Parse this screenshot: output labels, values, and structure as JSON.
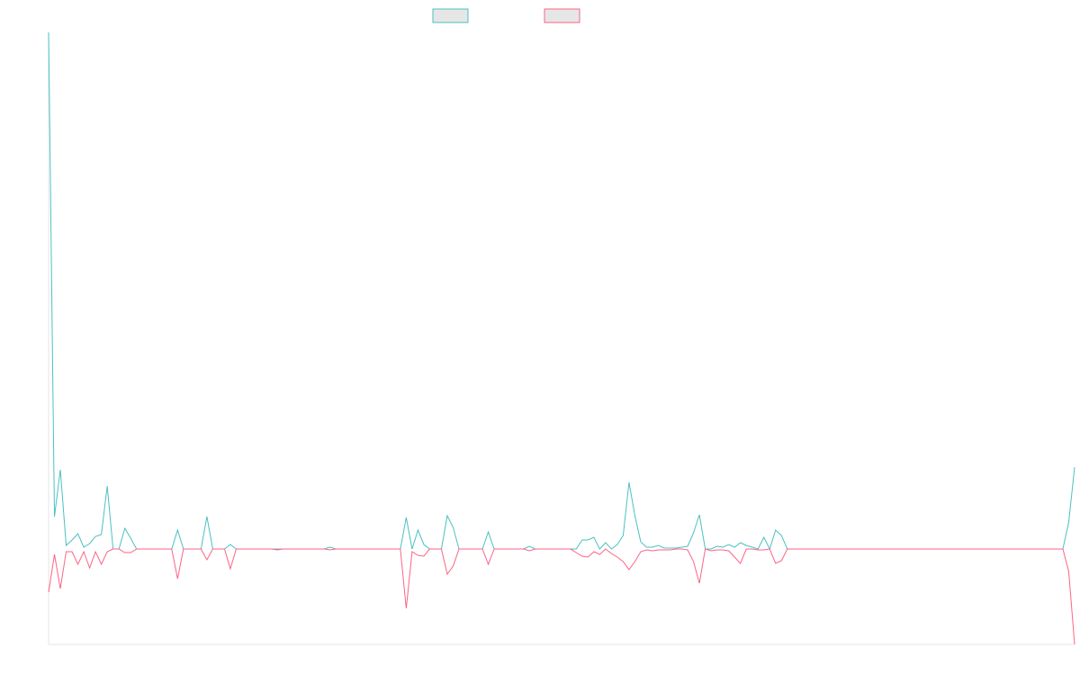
{
  "chart_data": {
    "type": "line",
    "series": [
      {
        "color": "#4bc0c0",
        "values": [
          574,
          36,
          88,
          4,
          10,
          17,
          2,
          6,
          14,
          16,
          70,
          0,
          0,
          23,
          12,
          0,
          0,
          0,
          0,
          0,
          0,
          0,
          21,
          0,
          0,
          0,
          0,
          36,
          0,
          0,
          0,
          5,
          0,
          0,
          0,
          0,
          0,
          0,
          0,
          0,
          0,
          0,
          0,
          0,
          0,
          0,
          0,
          0,
          2,
          0,
          0,
          0,
          0,
          0,
          0,
          0,
          0,
          0,
          0,
          0,
          0,
          35,
          0,
          21,
          5,
          0,
          0,
          0,
          37,
          24,
          0,
          0,
          0,
          0,
          0,
          19,
          0,
          0,
          0,
          0,
          0,
          0,
          3,
          0,
          0,
          0,
          0,
          0,
          0,
          0,
          0,
          10,
          10,
          13,
          0,
          7,
          0,
          5,
          15,
          74,
          37,
          8,
          2,
          2,
          4,
          1,
          1,
          1,
          2,
          3,
          18,
          38,
          0,
          0,
          3,
          2,
          5,
          2,
          7,
          4,
          2,
          0,
          13,
          0,
          21,
          15,
          0,
          0,
          0,
          0,
          0,
          0,
          0,
          0,
          0,
          0,
          0,
          0,
          0,
          0,
          0,
          0,
          0,
          0,
          0,
          0,
          0,
          0,
          0,
          0,
          0,
          0,
          0,
          0,
          0,
          0,
          0,
          0,
          0,
          0,
          0,
          0,
          0,
          0,
          0,
          0,
          0,
          0,
          0,
          0,
          0,
          0,
          0,
          0,
          30,
          91
        ]
      },
      {
        "color": "#ff6384",
        "values": [
          -48,
          -6,
          -44,
          -3,
          -3,
          -17,
          -3,
          -21,
          -3,
          -17,
          -3,
          0,
          0,
          -4,
          -4,
          0,
          0,
          0,
          0,
          0,
          0,
          0,
          -33,
          0,
          0,
          0,
          0,
          -12,
          0,
          0,
          0,
          -22,
          0,
          0,
          0,
          0,
          0,
          0,
          0,
          -1,
          0,
          0,
          0,
          0,
          0,
          0,
          0,
          0,
          -1,
          0,
          0,
          0,
          0,
          0,
          0,
          0,
          0,
          0,
          0,
          0,
          0,
          -66,
          -3,
          -7,
          -8,
          0,
          0,
          0,
          -28,
          -19,
          0,
          0,
          0,
          0,
          0,
          -17,
          0,
          0,
          0,
          0,
          0,
          0,
          -2,
          0,
          0,
          0,
          0,
          0,
          0,
          0,
          -4,
          -8,
          -9,
          -3,
          -6,
          0,
          -5,
          -9,
          -14,
          -23,
          -14,
          -3,
          -1,
          -2,
          -1,
          -1,
          -1,
          0,
          0,
          -1,
          -14,
          -38,
          0,
          -2,
          -1,
          -1,
          -2,
          -9,
          -16,
          0,
          0,
          -1,
          -1,
          0,
          -16,
          -13,
          0,
          0,
          0,
          0,
          0,
          0,
          0,
          0,
          0,
          0,
          0,
          0,
          0,
          0,
          0,
          0,
          0,
          0,
          0,
          0,
          0,
          0,
          0,
          0,
          0,
          0,
          0,
          0,
          0,
          0,
          0,
          0,
          0,
          0,
          0,
          0,
          0,
          0,
          0,
          0,
          0,
          0,
          0,
          0,
          0,
          0,
          0,
          0,
          -25,
          -106
        ]
      }
    ],
    "ylim": [
      -106,
      574
    ]
  }
}
